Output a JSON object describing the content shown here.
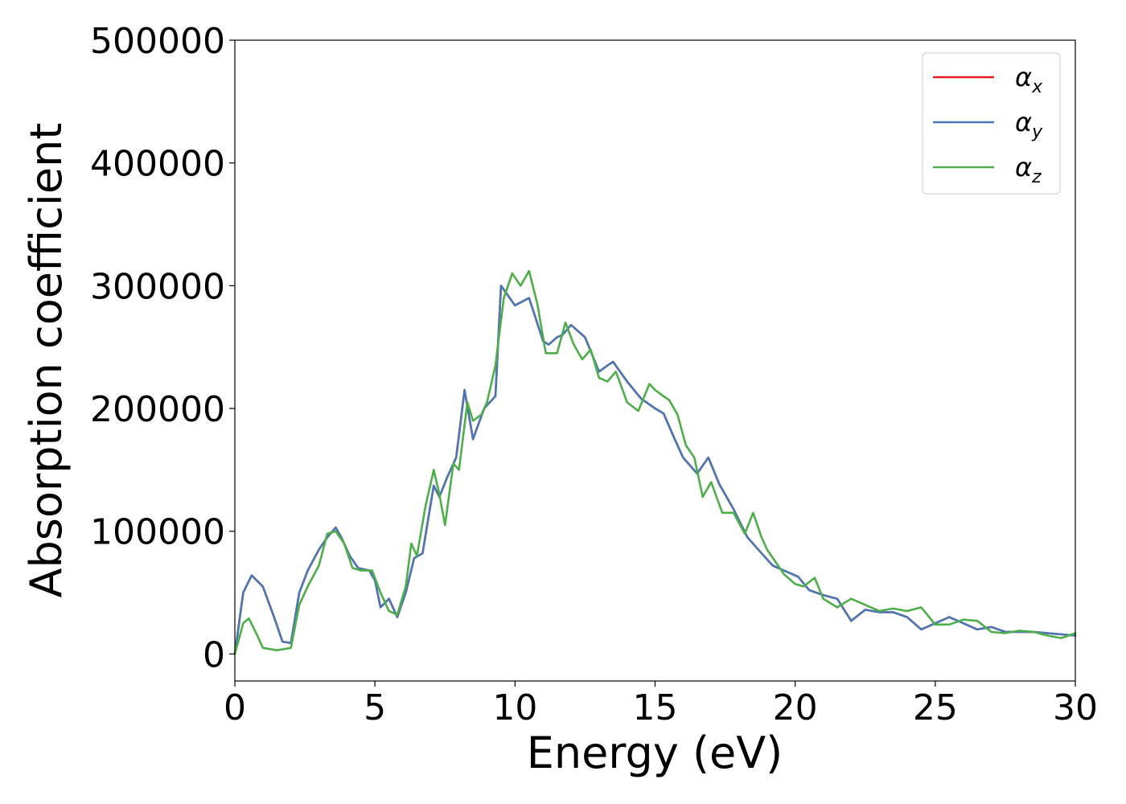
{
  "chart_data": {
    "type": "line",
    "xlabel": "Energy (eV)",
    "ylabel": "Absorption coefficient",
    "xlim": [
      0,
      30
    ],
    "ylim": [
      -22000,
      500000
    ],
    "xticks": [
      0,
      5,
      10,
      15,
      20,
      25,
      30
    ],
    "xtick_labels": [
      "0",
      "5",
      "10",
      "15",
      "20",
      "25",
      "30"
    ],
    "yticks": [
      0,
      100000,
      200000,
      300000,
      400000,
      500000
    ],
    "ytick_labels": [
      "0",
      "100000",
      "200000",
      "300000",
      "400000",
      "500000"
    ],
    "grid": false,
    "legend_position": "top-right",
    "series": [
      {
        "name": "α_x",
        "legend_base": "α",
        "legend_sub": "x",
        "color": "#e41a1c",
        "x": [
          0,
          0.3,
          0.6,
          1.0,
          1.4,
          1.7,
          2.0,
          2.3,
          2.6,
          3.0,
          3.3,
          3.6,
          3.8,
          4.1,
          4.4,
          4.8,
          5.0,
          5.2,
          5.5,
          5.8,
          6.1,
          6.4,
          6.7,
          6.9,
          7.1,
          7.3,
          7.6,
          7.9,
          8.2,
          8.5,
          8.9,
          9.3,
          9.5,
          10.0,
          10.5,
          11.0,
          11.2,
          11.5,
          11.7,
          12.0,
          12.5,
          13.0,
          13.3,
          13.5,
          14.0,
          14.5,
          15.0,
          15.3,
          15.7,
          16.0,
          16.5,
          16.9,
          17.3,
          17.8,
          18.3,
          18.8,
          19.2,
          19.6,
          20.1,
          20.5,
          21.0,
          21.5,
          22.0,
          22.5,
          23.0,
          23.5,
          24.0,
          24.5,
          25.0,
          25.5,
          26.0,
          26.5,
          27.0,
          27.5,
          28.0,
          28.5,
          29.0,
          29.5,
          30.0
        ],
        "y": [
          0,
          50000,
          64000,
          55000,
          30000,
          10000,
          9000,
          50000,
          68000,
          85000,
          95000,
          103000,
          95000,
          80000,
          70000,
          68000,
          60000,
          38000,
          45000,
          30000,
          50000,
          78000,
          82000,
          110000,
          137000,
          128000,
          145000,
          160000,
          215000,
          175000,
          200000,
          210000,
          300000,
          284000,
          290000,
          255000,
          252000,
          258000,
          260000,
          268000,
          258000,
          230000,
          235000,
          238000,
          222000,
          208000,
          200000,
          196000,
          175000,
          160000,
          147000,
          160000,
          138000,
          118000,
          95000,
          82000,
          72000,
          68000,
          63000,
          52000,
          48000,
          45000,
          27000,
          36000,
          34000,
          34000,
          30000,
          20000,
          25000,
          30000,
          25000,
          20000,
          22000,
          18000,
          18000,
          18000,
          17000,
          16000,
          15000
        ]
      },
      {
        "name": "α_y",
        "legend_base": "α",
        "legend_sub": "y",
        "color": "#4a78b5",
        "x": [
          0,
          0.3,
          0.6,
          1.0,
          1.4,
          1.7,
          2.0,
          2.3,
          2.6,
          3.0,
          3.3,
          3.6,
          3.8,
          4.1,
          4.4,
          4.8,
          5.0,
          5.2,
          5.5,
          5.8,
          6.1,
          6.4,
          6.7,
          6.9,
          7.1,
          7.3,
          7.6,
          7.9,
          8.2,
          8.5,
          8.9,
          9.3,
          9.5,
          10.0,
          10.5,
          11.0,
          11.2,
          11.5,
          11.7,
          12.0,
          12.5,
          13.0,
          13.3,
          13.5,
          14.0,
          14.5,
          15.0,
          15.3,
          15.7,
          16.0,
          16.5,
          16.9,
          17.3,
          17.8,
          18.3,
          18.8,
          19.2,
          19.6,
          20.1,
          20.5,
          21.0,
          21.5,
          22.0,
          22.5,
          23.0,
          23.5,
          24.0,
          24.5,
          25.0,
          25.5,
          26.0,
          26.5,
          27.0,
          27.5,
          28.0,
          28.5,
          29.0,
          29.5,
          30.0
        ],
        "y": [
          0,
          50000,
          64000,
          55000,
          30000,
          10000,
          9000,
          50000,
          68000,
          85000,
          95000,
          103000,
          95000,
          80000,
          70000,
          68000,
          60000,
          38000,
          45000,
          30000,
          50000,
          78000,
          82000,
          110000,
          137000,
          128000,
          145000,
          160000,
          215000,
          175000,
          200000,
          210000,
          300000,
          284000,
          290000,
          255000,
          252000,
          258000,
          260000,
          268000,
          258000,
          230000,
          235000,
          238000,
          222000,
          208000,
          200000,
          196000,
          175000,
          160000,
          147000,
          160000,
          138000,
          118000,
          95000,
          82000,
          72000,
          68000,
          63000,
          52000,
          48000,
          45000,
          27000,
          36000,
          34000,
          34000,
          30000,
          20000,
          25000,
          30000,
          25000,
          20000,
          22000,
          18000,
          18000,
          18000,
          17000,
          16000,
          15000
        ]
      },
      {
        "name": "α_z",
        "legend_base": "α",
        "legend_sub": "z",
        "color": "#4daf4a",
        "x": [
          0,
          0.3,
          0.5,
          0.8,
          1.0,
          1.5,
          2.0,
          2.3,
          2.6,
          3.0,
          3.3,
          3.6,
          3.9,
          4.2,
          4.5,
          4.9,
          5.2,
          5.5,
          5.8,
          6.1,
          6.3,
          6.5,
          6.8,
          7.1,
          7.3,
          7.5,
          7.8,
          8.0,
          8.3,
          8.5,
          8.8,
          9.0,
          9.3,
          9.6,
          9.9,
          10.2,
          10.5,
          10.8,
          11.1,
          11.5,
          11.8,
          12.1,
          12.4,
          12.7,
          13.0,
          13.3,
          13.6,
          14.0,
          14.4,
          14.8,
          15.0,
          15.3,
          15.5,
          15.8,
          16.1,
          16.4,
          16.7,
          17.0,
          17.4,
          17.8,
          18.2,
          18.5,
          18.8,
          19.0,
          19.3,
          19.6,
          20.0,
          20.3,
          20.7,
          21.0,
          21.5,
          22.0,
          22.5,
          23.0,
          23.5,
          24.0,
          24.5,
          25.0,
          25.5,
          26.0,
          26.5,
          27.0,
          27.5,
          28.0,
          28.5,
          29.0,
          29.5,
          30.0
        ],
        "y": [
          0,
          25000,
          29000,
          15000,
          5000,
          3000,
          5000,
          40000,
          55000,
          72000,
          98000,
          100000,
          90000,
          70000,
          68000,
          68000,
          50000,
          35000,
          32000,
          55000,
          90000,
          80000,
          120000,
          150000,
          130000,
          105000,
          155000,
          150000,
          205000,
          190000,
          195000,
          205000,
          235000,
          290000,
          310000,
          300000,
          312000,
          285000,
          245000,
          245000,
          270000,
          252000,
          240000,
          248000,
          225000,
          222000,
          230000,
          205000,
          198000,
          220000,
          215000,
          210000,
          207000,
          195000,
          170000,
          160000,
          128000,
          140000,
          115000,
          115000,
          98000,
          115000,
          95000,
          85000,
          75000,
          65000,
          57000,
          55000,
          62000,
          45000,
          38000,
          45000,
          40000,
          35000,
          37000,
          35000,
          38000,
          24000,
          24000,
          28000,
          27000,
          18000,
          17000,
          19000,
          18000,
          15000,
          13000,
          17000
        ]
      }
    ]
  }
}
